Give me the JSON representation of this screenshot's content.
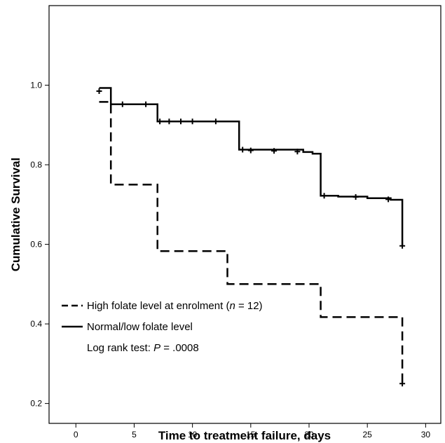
{
  "chart_data": {
    "type": "line",
    "subtype": "step (Kaplan-Meier survival curve) with censor tick marks",
    "title": "",
    "xlabel": "Time to treatment failure, days",
    "ylabel": "Cumulative Survival",
    "xlim": [
      -2.3,
      31.3
    ],
    "ylim": [
      0.15,
      1.2
    ],
    "xticks": [
      0,
      5,
      10,
      15,
      20,
      25,
      30
    ],
    "yticks": [
      0.2,
      0.4,
      0.6,
      0.8,
      1.0
    ],
    "xtick_labels": [
      "0",
      "5",
      "10",
      "15",
      "20",
      "25",
      "30"
    ],
    "ytick_labels": [
      "0.2",
      "0.4",
      "0.6",
      "0.8",
      "1.0"
    ],
    "grid": false,
    "legend_placement": "bottom-left inside plot",
    "series": [
      {
        "name": "High folate level at enrolment",
        "line_style": "dashed",
        "color": "#000000",
        "steps": [
          {
            "x": 2,
            "y": 0.958
          },
          {
            "x": 3,
            "y": 0.75
          },
          {
            "x": 7,
            "y": 0.583
          },
          {
            "x": 13,
            "y": 0.5
          },
          {
            "x": 21,
            "y": 0.417
          },
          {
            "x": 28,
            "y": 0.25
          }
        ],
        "x_end": 28,
        "censored": [
          {
            "x": 2,
            "y": 0.985
          },
          {
            "x": 28,
            "y": 0.25
          }
        ]
      },
      {
        "name": "Normal/low folate level",
        "line_style": "solid",
        "color": "#000000",
        "steps": [
          {
            "x": 2,
            "y": 0.993
          },
          {
            "x": 3,
            "y": 0.952
          },
          {
            "x": 7,
            "y": 0.909
          },
          {
            "x": 14,
            "y": 0.838
          },
          {
            "x": 21,
            "y": 0.722
          },
          {
            "x": 28,
            "y": 0.596
          }
        ],
        "extra_drops": [
          {
            "x": 19.5,
            "y": 0.832
          },
          {
            "x": 20.3,
            "y": 0.828
          },
          {
            "x": 22.5,
            "y": 0.72
          },
          {
            "x": 25,
            "y": 0.716
          },
          {
            "x": 27,
            "y": 0.712
          }
        ],
        "x_end": 28,
        "censored": [
          {
            "x": 4,
            "y": 0.952
          },
          {
            "x": 6,
            "y": 0.952
          },
          {
            "x": 7.2,
            "y": 0.909
          },
          {
            "x": 8,
            "y": 0.909
          },
          {
            "x": 9,
            "y": 0.909
          },
          {
            "x": 10,
            "y": 0.909
          },
          {
            "x": 12,
            "y": 0.909
          },
          {
            "x": 14.3,
            "y": 0.838
          },
          {
            "x": 15,
            "y": 0.836
          },
          {
            "x": 17,
            "y": 0.835
          },
          {
            "x": 19,
            "y": 0.833
          },
          {
            "x": 21.3,
            "y": 0.722
          },
          {
            "x": 24,
            "y": 0.719
          },
          {
            "x": 26.8,
            "y": 0.713
          },
          {
            "x": 28,
            "y": 0.596
          }
        ]
      }
    ],
    "legend": {
      "entry1_prefix": "High folate level at enrolment (",
      "entry1_n": "n",
      "entry1_suffix": " = 12)",
      "entry2": "Normal/low folate level",
      "note_prefix": "Log rank test: ",
      "note_p": "P",
      "note_suffix": " = .0008"
    }
  }
}
